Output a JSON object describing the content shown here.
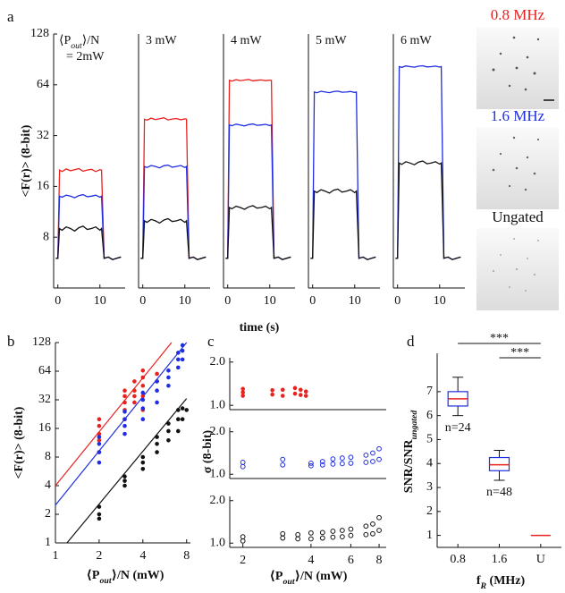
{
  "panel_labels": [
    "a",
    "b",
    "c",
    "d"
  ],
  "images": [
    {
      "label": "0.8 MHz",
      "color": "#e8221f"
    },
    {
      "label": "1.6 MHz",
      "color": "#1f2ee0"
    },
    {
      "label": "Ungated",
      "color": "#111111"
    }
  ],
  "chart_data": [
    {
      "type": "line",
      "annotation": [
        [
          "⟨P",
          "out",
          "⟩/N"
        ],
        "= 2mW"
      ],
      "ylabel": "<F(r)> (8-bit)",
      "yscale": "log",
      "x": [
        -0.5,
        0,
        0.4,
        1,
        2,
        3,
        4,
        5,
        6,
        7,
        8,
        9,
        10,
        10.4,
        11,
        12,
        13,
        14,
        15
      ],
      "xlim": [
        -1,
        16
      ],
      "xticks": [
        0,
        10
      ],
      "ylim": [
        4,
        128
      ],
      "yticks": [
        8,
        16,
        32,
        64,
        128
      ],
      "series": [
        {
          "color": "#e8221f",
          "values": [
            6,
            6,
            20,
            19.6,
            20.3,
            19.8,
            20.1,
            20.4,
            19.7,
            20,
            20.2,
            19.6,
            20.1,
            20,
            6,
            6.1,
            5.9,
            6,
            6.1
          ]
        },
        {
          "color": "#1f2ee0",
          "values": [
            6,
            6,
            14,
            13.8,
            14.2,
            14,
            13.7,
            14.1,
            14.3,
            13.9,
            14,
            14.2,
            13.8,
            14,
            6,
            6.1,
            5.9,
            6,
            6.1
          ]
        },
        {
          "color": "#111111",
          "values": [
            6,
            6,
            9,
            8.8,
            9.2,
            9,
            8.7,
            9.1,
            9.3,
            8.9,
            9,
            9.2,
            8.8,
            9,
            6,
            6.1,
            5.9,
            6,
            6.1
          ]
        }
      ]
    },
    {
      "type": "line",
      "title": "3 mW",
      "yscale": "log",
      "x": [
        -0.5,
        0,
        0.4,
        1,
        2,
        3,
        4,
        5,
        6,
        7,
        8,
        9,
        10,
        10.4,
        11,
        12,
        13,
        14,
        15
      ],
      "xlim": [
        -1,
        16
      ],
      "xticks": [
        0,
        10
      ],
      "ylim": [
        4,
        128
      ],
      "series": [
        {
          "color": "#e8221f",
          "values": [
            6,
            6,
            40,
            39.5,
            40.6,
            39.8,
            40.3,
            40.8,
            39.6,
            40.1,
            40.4,
            39.7,
            40.2,
            40,
            6,
            6.1,
            5.9,
            6,
            6.1
          ]
        },
        {
          "color": "#1f2ee0",
          "values": [
            6,
            6,
            21,
            20.7,
            21.3,
            21,
            20.6,
            21.2,
            21.4,
            20.8,
            21,
            21.3,
            20.7,
            21,
            6,
            6.1,
            5.9,
            6,
            6.1
          ]
        },
        {
          "color": "#111111",
          "values": [
            6,
            6,
            10,
            9.8,
            10.2,
            10,
            9.7,
            10.1,
            10.3,
            9.9,
            10,
            10.2,
            9.8,
            10,
            6,
            6.1,
            5.9,
            6,
            6.1
          ]
        }
      ]
    },
    {
      "type": "line",
      "title": "4 mW",
      "xlabel": "time (s)",
      "yscale": "log",
      "x": [
        -0.5,
        0,
        0.4,
        1,
        2,
        3,
        4,
        5,
        6,
        7,
        8,
        9,
        10,
        10.4,
        11,
        12,
        13,
        14,
        15
      ],
      "xlim": [
        -1,
        16
      ],
      "xticks": [
        0,
        10
      ],
      "ylim": [
        4,
        128
      ],
      "series": [
        {
          "color": "#e8221f",
          "values": [
            6,
            6,
            68,
            67.3,
            68.6,
            67.8,
            68.3,
            68.9,
            67.5,
            68.1,
            68.4,
            67.7,
            68.2,
            68,
            6,
            6.1,
            5.9,
            6,
            6.1
          ]
        },
        {
          "color": "#1f2ee0",
          "values": [
            6,
            6,
            37,
            36.6,
            37.4,
            37,
            36.5,
            37.2,
            37.5,
            36.8,
            37,
            37.3,
            36.7,
            37,
            6,
            6.1,
            5.9,
            6,
            6.1
          ]
        },
        {
          "color": "#111111",
          "values": [
            6,
            6,
            12,
            11.8,
            12.2,
            12,
            11.7,
            12.1,
            12.3,
            11.9,
            12,
            12.2,
            11.8,
            12,
            6,
            6.1,
            5.9,
            6,
            6.1
          ]
        }
      ]
    },
    {
      "type": "line",
      "title": "5 mW",
      "yscale": "log",
      "x": [
        -0.5,
        0,
        0.4,
        1,
        2,
        3,
        4,
        5,
        6,
        7,
        8,
        9,
        10,
        10.4,
        11,
        12,
        13,
        14,
        15
      ],
      "xlim": [
        -1,
        16
      ],
      "xticks": [
        0,
        10
      ],
      "ylim": [
        4,
        128
      ],
      "series": [
        {
          "color": "#1f2ee0",
          "values": [
            6,
            6,
            58,
            57.4,
            58.6,
            58,
            57.5,
            58.3,
            58.7,
            57.8,
            58,
            58.4,
            57.6,
            58,
            6,
            6.1,
            5.9,
            6,
            6.1
          ]
        },
        {
          "color": "#111111",
          "values": [
            6,
            6,
            15,
            14.7,
            15.3,
            15,
            14.6,
            15.2,
            15.4,
            14.8,
            15,
            15.3,
            14.7,
            15,
            6,
            6.1,
            5.9,
            6,
            6.1
          ]
        }
      ]
    },
    {
      "type": "line",
      "title": "6 mW",
      "yscale": "log",
      "x": [
        -0.5,
        0,
        0.4,
        1,
        2,
        3,
        4,
        5,
        6,
        7,
        8,
        9,
        10,
        10.4,
        11,
        12,
        13,
        14,
        15
      ],
      "xlim": [
        -1,
        16
      ],
      "xticks": [
        0,
        10
      ],
      "ylim": [
        4,
        128
      ],
      "series": [
        {
          "color": "#1f2ee0",
          "values": [
            6,
            6,
            82,
            81.2,
            82.8,
            82,
            81.4,
            82.5,
            83,
            81.7,
            82,
            82.6,
            81.5,
            82,
            6,
            6.1,
            5.9,
            6,
            6.1
          ]
        },
        {
          "color": "#111111",
          "values": [
            6,
            6,
            22,
            21.6,
            22.4,
            22,
            21.5,
            22.3,
            22.6,
            21.8,
            22,
            22.4,
            21.7,
            22,
            6,
            6.1,
            5.9,
            6,
            6.1
          ]
        }
      ]
    },
    {
      "type": "scatter",
      "ylabel": "<F(r)> (8-bit)",
      "xlabel": [
        "⟨P",
        "out",
        "⟩/N (mW)"
      ],
      "xscale": "log",
      "yscale": "log",
      "xlim": [
        1,
        8.5
      ],
      "ylim": [
        1,
        128
      ],
      "xticks": [
        1,
        2,
        4,
        8
      ],
      "yticks": [
        1,
        2,
        4,
        8,
        16,
        32,
        64,
        128
      ],
      "marker": "filled",
      "series": [
        {
          "color": "#e8221f",
          "x": [
            2,
            2,
            2,
            2,
            2,
            3,
            3,
            3,
            3,
            3,
            3.5,
            3.5,
            3.5,
            3.5,
            4,
            4,
            4,
            4,
            4,
            5,
            5
          ],
          "values": [
            9,
            12,
            14,
            17,
            20,
            20,
            25,
            30,
            35,
            40,
            30,
            35,
            40,
            50,
            25,
            35,
            45,
            55,
            65,
            50,
            60
          ]
        },
        {
          "color": "#1f2ee0",
          "x": [
            2,
            2,
            2,
            2,
            3,
            3,
            3,
            3,
            4,
            4,
            4,
            4,
            5,
            5,
            5,
            6,
            6,
            6,
            7,
            7,
            7,
            7.5,
            7.5,
            7.5
          ],
          "values": [
            7,
            9,
            11,
            13,
            14,
            17,
            20,
            24,
            20,
            26,
            32,
            38,
            30,
            40,
            50,
            45,
            55,
            65,
            70,
            85,
            100,
            85,
            105,
            120
          ]
        },
        {
          "color": "#111111",
          "x": [
            2,
            2,
            2,
            3,
            3,
            3,
            4,
            4,
            4,
            5,
            5,
            5,
            6,
            6,
            6,
            7,
            7,
            7,
            7.5,
            7.5,
            8
          ],
          "values": [
            1.8,
            2,
            2.4,
            4,
            4.5,
            5,
            6,
            7,
            8,
            9,
            11,
            13,
            12,
            15,
            18,
            15,
            20,
            25,
            20,
            26,
            25
          ]
        }
      ],
      "fits": [
        {
          "color": "#e8221f",
          "x": [
            1,
            6.3
          ],
          "values": [
            4,
            128
          ]
        },
        {
          "color": "#1f2ee0",
          "x": [
            1,
            8
          ],
          "values": [
            2.5,
            128
          ]
        },
        {
          "color": "#111111",
          "x": [
            1.2,
            8
          ],
          "values": [
            1,
            33
          ]
        }
      ]
    },
    {
      "type": "scatter",
      "ylabel": "σ (8-bit)",
      "xscale": "log",
      "xlim": [
        1.75,
        8.6
      ],
      "ylim": [
        0.9,
        2.1
      ],
      "yticks": [
        {
          "value": 1,
          "label": "1.0"
        },
        {
          "value": 2,
          "label": "2.0"
        }
      ],
      "marker": "filled",
      "series": [
        {
          "color": "#e8221f",
          "x": [
            2,
            2,
            2,
            2.7,
            2.7,
            3,
            3,
            3.4,
            3.4,
            3.6,
            3.6,
            3.8,
            3.8
          ],
          "values": [
            1.22,
            1.3,
            1.38,
            1.25,
            1.35,
            1.22,
            1.36,
            1.27,
            1.4,
            1.24,
            1.36,
            1.22,
            1.32
          ]
        }
      ]
    },
    {
      "type": "scatter",
      "xscale": "log",
      "xlim": [
        1.75,
        8.6
      ],
      "ylim": [
        0.9,
        2.1
      ],
      "yticks": [
        {
          "value": 1,
          "label": "1.0"
        },
        {
          "value": 2,
          "label": "2.0"
        }
      ],
      "marker": "open",
      "series": [
        {
          "color": "#1f2ee0",
          "x": [
            2,
            2,
            3,
            3,
            4,
            4,
            4.5,
            4.5,
            5,
            5,
            5.5,
            5.5,
            6,
            6,
            7,
            7,
            7.5,
            7.5,
            8,
            8
          ],
          "values": [
            1.18,
            1.28,
            1.22,
            1.35,
            1.2,
            1.26,
            1.22,
            1.3,
            1.24,
            1.36,
            1.25,
            1.38,
            1.26,
            1.4,
            1.28,
            1.45,
            1.3,
            1.5,
            1.35,
            1.6
          ]
        }
      ]
    },
    {
      "type": "scatter",
      "xlabel": [
        "⟨P",
        "out",
        "⟩/N (mW)"
      ],
      "xscale": "log",
      "xlim": [
        1.75,
        8.6
      ],
      "ylim": [
        0.9,
        2.1
      ],
      "xticks": [
        2,
        4,
        6,
        8
      ],
      "yticks": [
        {
          "value": 1,
          "label": "1.0"
        },
        {
          "value": 2,
          "label": "2.0"
        }
      ],
      "marker": "open",
      "series": [
        {
          "color": "#111111",
          "x": [
            2,
            2,
            3,
            3,
            3.5,
            3.5,
            4,
            4,
            4.5,
            4.5,
            5,
            5,
            5.5,
            5.5,
            6,
            6,
            7,
            7,
            7.5,
            7.5,
            8,
            8
          ],
          "values": [
            1.05,
            1.15,
            1.12,
            1.22,
            1.1,
            1.2,
            1.1,
            1.24,
            1.12,
            1.25,
            1.14,
            1.28,
            1.15,
            1.3,
            1.18,
            1.33,
            1.2,
            1.4,
            1.22,
            1.45,
            1.3,
            1.6
          ]
        }
      ]
    },
    {
      "type": "box",
      "ylabel": [
        "SNR/SNR",
        "ungated"
      ],
      "xlabel": [
        "f",
        "R",
        " (MHz)"
      ],
      "categories": [
        "0.8",
        "1.6",
        "U"
      ],
      "ylim": [
        0.5,
        8.6
      ],
      "yticks": [
        1,
        2,
        3,
        4,
        5,
        6,
        7
      ],
      "box_color": "#1f2ee0",
      "median_color": "#e8221f",
      "annotations": [
        "***",
        "***"
      ],
      "boxes": [
        {
          "whisker_low": 6.0,
          "q1": 6.4,
          "median": 6.7,
          "q3": 7.0,
          "whisker_high": 7.6,
          "n_label": "n=24"
        },
        {
          "whisker_low": 3.3,
          "q1": 3.7,
          "median": 3.95,
          "q3": 4.25,
          "whisker_high": 4.55,
          "n_label": "n=48"
        },
        {
          "median": 1.0
        }
      ]
    }
  ]
}
